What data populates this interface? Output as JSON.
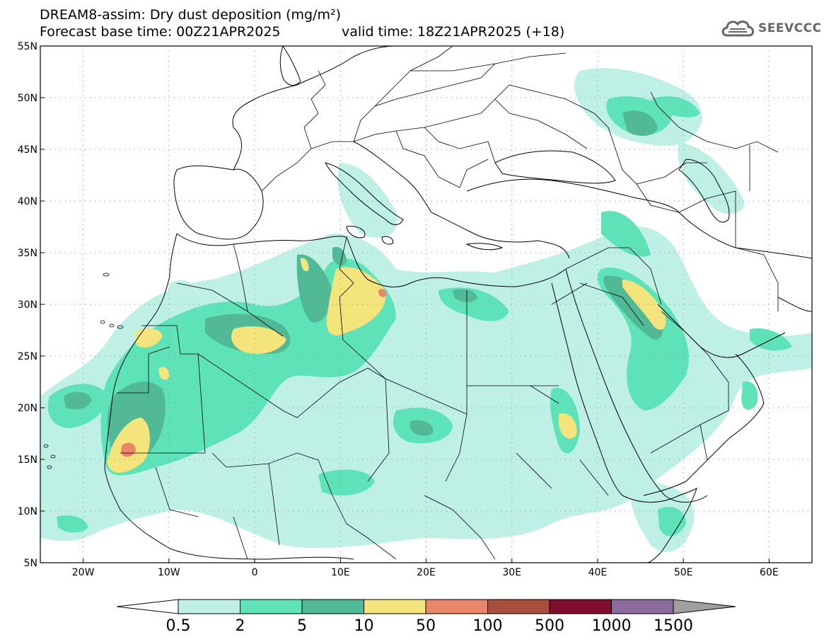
{
  "header": {
    "title_line1": "DREAM8-assim: Dry dust deposition (mg/m²)",
    "title_line2": "Forecast base time: 00Z21APR2025",
    "valid_time": "valid time: 18Z21APR2025 (+18)",
    "logo_text": "SEEVCCC"
  },
  "map": {
    "lat_labels": [
      "55N",
      "50N",
      "45N",
      "40N",
      "35N",
      "30N",
      "25N",
      "20N",
      "15N",
      "10N",
      "5N"
    ],
    "lon_labels": [
      "20W",
      "10W",
      "0",
      "10E",
      "20E",
      "30E",
      "40E",
      "50E",
      "60E"
    ],
    "extent": {
      "lon_min": -25,
      "lon_max": 65,
      "lat_min": 5,
      "lat_max": 55
    }
  },
  "colorbar": {
    "labels": [
      "0.5",
      "2",
      "5",
      "10",
      "50",
      "100",
      "500",
      "1000",
      "1500"
    ],
    "colors": [
      "#bff0e6",
      "#5ee3b9",
      "#52b996",
      "#f4e47c",
      "#e8866a",
      "#a94d3f",
      "#800d2e",
      "#8c6b9e"
    ],
    "over_color": "#a0a0a0"
  }
}
